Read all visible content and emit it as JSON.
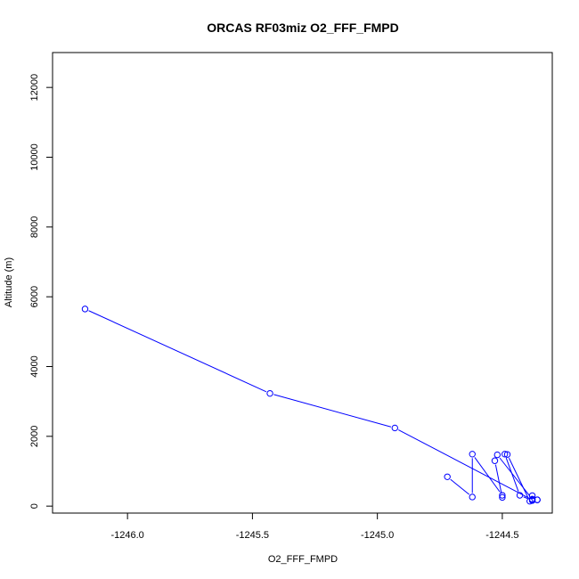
{
  "chart_data": {
    "type": "line",
    "title": "ORCAS RF03miz O2_FFF_FMPD",
    "xlabel": "O2_FFF_FMPD",
    "ylabel": "Altitude (m)",
    "xlim": [
      -1246.3,
      -1244.3
    ],
    "ylim": [
      -200,
      13000
    ],
    "xticks": [
      -1246.0,
      -1245.5,
      -1245.0,
      -1244.5
    ],
    "xtick_labels": [
      "-1246.0",
      "-1245.5",
      "-1245.0",
      "-1244.5"
    ],
    "yticks": [
      0,
      2000,
      4000,
      6000,
      8000,
      10000,
      12000
    ],
    "ytick_labels": [
      "0",
      "2000",
      "4000",
      "6000",
      "8000",
      "10000",
      "12000"
    ],
    "grid": false,
    "colors": {
      "series": "#0000ff",
      "axis": "#000000",
      "background": "#ffffff"
    },
    "series": [
      {
        "marker": "open-circle",
        "x": [
          -1246.17,
          -1245.43,
          -1244.93,
          -1244.38,
          -1244.36,
          -1244.38,
          -1244.39,
          -1244.48,
          -1244.49,
          -1244.43,
          -1244.38,
          -1244.36,
          -1244.38,
          -1244.52,
          -1244.53,
          -1244.5,
          -1244.5,
          -1244.62,
          -1244.62,
          -1244.72
        ],
        "y": [
          5650,
          3230,
          2240,
          180,
          180,
          300,
          140,
          1480,
          1490,
          310,
          160,
          180,
          200,
          1470,
          1300,
          250,
          310,
          1490,
          260,
          840
        ]
      }
    ]
  }
}
